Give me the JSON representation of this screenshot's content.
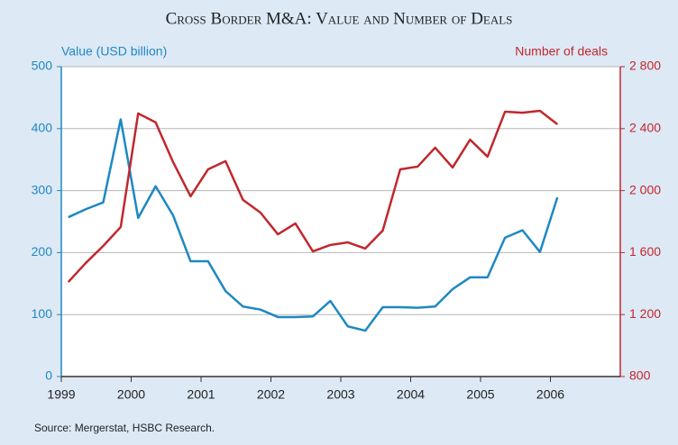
{
  "chart_data": {
    "type": "line",
    "title": "Cross Border M&A: Value and Number of Deals",
    "y_label": "Value (USD billion)",
    "y2_label": "Number of deals",
    "source": "Source: Mergerstat, HSBC Research.",
    "x": [
      1999.1,
      1999.35,
      1999.6,
      1999.85,
      2000.1,
      2000.35,
      2000.6,
      2000.85,
      2001.1,
      2001.35,
      2001.6,
      2001.85,
      2002.1,
      2002.35,
      2002.6,
      2002.85,
      2003.1,
      2003.35,
      2003.6,
      2003.85,
      2004.1,
      2004.35,
      2004.6,
      2004.85,
      2005.1,
      2005.35,
      2005.6,
      2005.85,
      2006.1
    ],
    "series": [
      {
        "name": "Value (USD billion)",
        "color": "#1e88c4",
        "axis": "y",
        "values": [
          257,
          270,
          281,
          415,
          256,
          307,
          260,
          186,
          186,
          138,
          113,
          108,
          96,
          96,
          97,
          122,
          81,
          74,
          112,
          112,
          111,
          113,
          141,
          160,
          160,
          224,
          236,
          201,
          289
        ]
      },
      {
        "name": "Number of deals",
        "color": "#c0282d",
        "axis": "y2",
        "values": [
          1410,
          1533,
          1643,
          1765,
          2498,
          2440,
          2184,
          1963,
          2137,
          2190,
          1940,
          1858,
          1718,
          1788,
          1608,
          1649,
          1666,
          1626,
          1742,
          2137,
          2155,
          2277,
          2149,
          2329,
          2219,
          2509,
          2503,
          2515,
          2428
        ]
      }
    ],
    "xlim": [
      1999,
      2007
    ],
    "xticks": [
      1999,
      2000,
      2001,
      2002,
      2003,
      2004,
      2005,
      2006
    ],
    "ylim": [
      0,
      500
    ],
    "yticks": [
      0,
      100,
      200,
      300,
      400,
      500
    ],
    "y2lim": [
      800,
      2800
    ],
    "y2ticks": [
      {
        "value": 800,
        "label": "800"
      },
      {
        "value": 1200,
        "label": "1 200"
      },
      {
        "value": 1600,
        "label": "1 600"
      },
      {
        "value": 2000,
        "label": "2 000"
      },
      {
        "value": 2400,
        "label": "2 400"
      },
      {
        "value": 2800,
        "label": "2 800"
      }
    ],
    "grid": true
  }
}
